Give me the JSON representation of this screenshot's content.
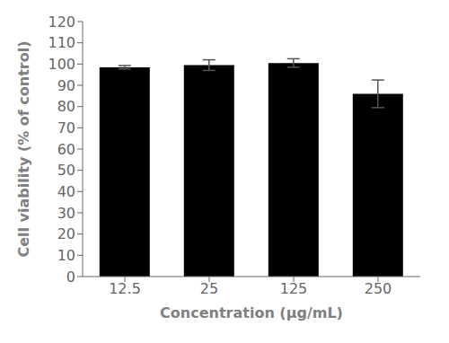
{
  "chart_data": {
    "type": "bar",
    "categories": [
      "12.5",
      "25",
      "125",
      "250"
    ],
    "values": [
      98.5,
      99.5,
      100.5,
      86.0
    ],
    "errors": [
      0.8,
      2.5,
      2.0,
      6.5
    ],
    "xlabel": "Concentration (μg/mL)",
    "ylabel": "Cell viability (% of control)",
    "ylim": [
      0,
      120
    ],
    "yticks": [
      0,
      10,
      20,
      30,
      40,
      50,
      60,
      70,
      80,
      90,
      100,
      110,
      120
    ],
    "grid": false
  }
}
